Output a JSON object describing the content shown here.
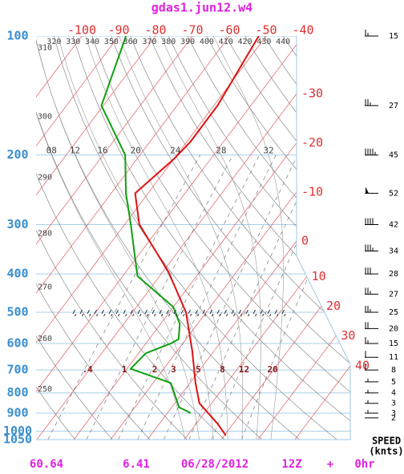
{
  "chart_data": {
    "type": "skewt",
    "title": "gdas1.jun12.w4",
    "ylim": [
      1050,
      100
    ],
    "yticks": [
      100,
      200,
      300,
      400,
      500,
      600,
      700,
      800,
      900,
      1000,
      1050
    ],
    "xticks": [
      -100,
      -90,
      -80,
      -70,
      -60,
      -50,
      -40,
      -30,
      -20,
      -10,
      0,
      10,
      20,
      30,
      40
    ],
    "theta_ticks": [
      250,
      260,
      270,
      280,
      290,
      300,
      310,
      320,
      330,
      340,
      350,
      360,
      370,
      380,
      390,
      400,
      410,
      420,
      430,
      440
    ],
    "moist_ticks": [
      {
        "value": 8,
        "label": "08"
      },
      12,
      16,
      20,
      24,
      28,
      32
    ],
    "mixing_ticks": [
      {
        "value": 0.4,
        "label": ".4"
      },
      1,
      2,
      3,
      5,
      8,
      12,
      20
    ],
    "pressure_color": "#3a8fd0",
    "isotherm_color": "#e03030",
    "series": [
      {
        "color": "#e01010",
        "pressure": [
          1025,
          955,
          850,
          755,
          625,
          500,
          395,
          300,
          250,
          205,
          185,
          150,
          100
        ],
        "values": [
          20.4,
          15.6,
          6.7,
          1.5,
          -6,
          -15.5,
          -28.5,
          -46,
          -53.5,
          -50,
          -49,
          -49,
          -52
        ]
      },
      {
        "color": "#10a010",
        "pressure": [
          900,
          890,
          870,
          755,
          695,
          635,
          600,
          585,
          535,
          485,
          405,
          350,
          300,
          250,
          200,
          150,
          100
        ],
        "values": [
          6.3,
          5,
          2,
          -5.2,
          -19,
          -18,
          -13.3,
          -12,
          -14.8,
          -20,
          -36,
          -42,
          -48.3,
          -56,
          -64,
          -80.5,
          -88
        ]
      }
    ],
    "wind": {
      "pressure": [
        100,
        150,
        200,
        250,
        300,
        350,
        400,
        450,
        500,
        550,
        600,
        650,
        700,
        750,
        800,
        850,
        900,
        925
      ],
      "speed": [
        15,
        27,
        45,
        52,
        42,
        34,
        28,
        27,
        25,
        20,
        15,
        11,
        8,
        5,
        4,
        3,
        3,
        2
      ]
    },
    "speed_label": "SPEED",
    "speed_unit": "(knts)",
    "footer": [
      "60.64",
      "6.41",
      "06/28/2012",
      "12Z",
      "+",
      "0hr"
    ]
  }
}
